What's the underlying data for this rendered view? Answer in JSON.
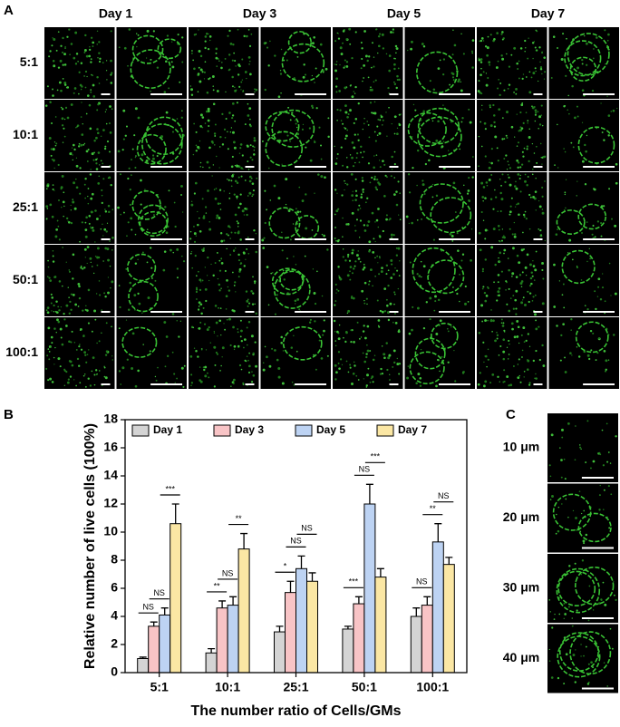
{
  "panel_a": {
    "label": "A",
    "columns": [
      "Day 1",
      "Day 3",
      "Day 5",
      "Day 7"
    ],
    "rows": [
      "5:1",
      "10:1",
      "25:1",
      "50:1",
      "100:1"
    ]
  },
  "chart_data": {
    "type": "bar",
    "label": "B",
    "y_label": "Relative number of live cells (100%)",
    "x_label": "The number ratio of Cells/GMs",
    "categories": [
      "5:1",
      "10:1",
      "25:1",
      "50:1",
      "100:1"
    ],
    "series": [
      {
        "name": "Day 1",
        "color": "#d4d4d4",
        "values": [
          1.0,
          1.4,
          2.9,
          3.1,
          4.0
        ],
        "errors": [
          0.1,
          0.3,
          0.4,
          0.2,
          0.6
        ]
      },
      {
        "name": "Day 3",
        "color": "#f8c4c6",
        "values": [
          3.3,
          4.6,
          5.7,
          4.9,
          4.8
        ],
        "errors": [
          0.3,
          0.5,
          0.8,
          0.5,
          0.6
        ]
      },
      {
        "name": "Day 5",
        "color": "#bdd3f3",
        "values": [
          4.1,
          4.8,
          7.4,
          12.0,
          9.3
        ],
        "errors": [
          0.5,
          0.6,
          0.9,
          1.4,
          1.3
        ]
      },
      {
        "name": "Day 7",
        "color": "#fbe7a4",
        "values": [
          10.6,
          8.8,
          6.5,
          6.8,
          7.7
        ],
        "errors": [
          1.4,
          1.1,
          0.6,
          0.6,
          0.5
        ]
      }
    ],
    "significance": [
      [
        "NS",
        "NS",
        "***"
      ],
      [
        "**",
        "NS",
        "**"
      ],
      [
        "*",
        "NS",
        "NS"
      ],
      [
        "***",
        "NS",
        "***"
      ],
      [
        "NS",
        "**",
        "NS"
      ]
    ],
    "ylim": [
      0,
      18
    ],
    "yticks": [
      0,
      2,
      4,
      6,
      8,
      10,
      12,
      14,
      16,
      18
    ],
    "legend": "top-left"
  },
  "panel_c": {
    "label": "C",
    "depths": [
      "10 μm",
      "20 μm",
      "30 μm",
      "40 μm"
    ]
  }
}
